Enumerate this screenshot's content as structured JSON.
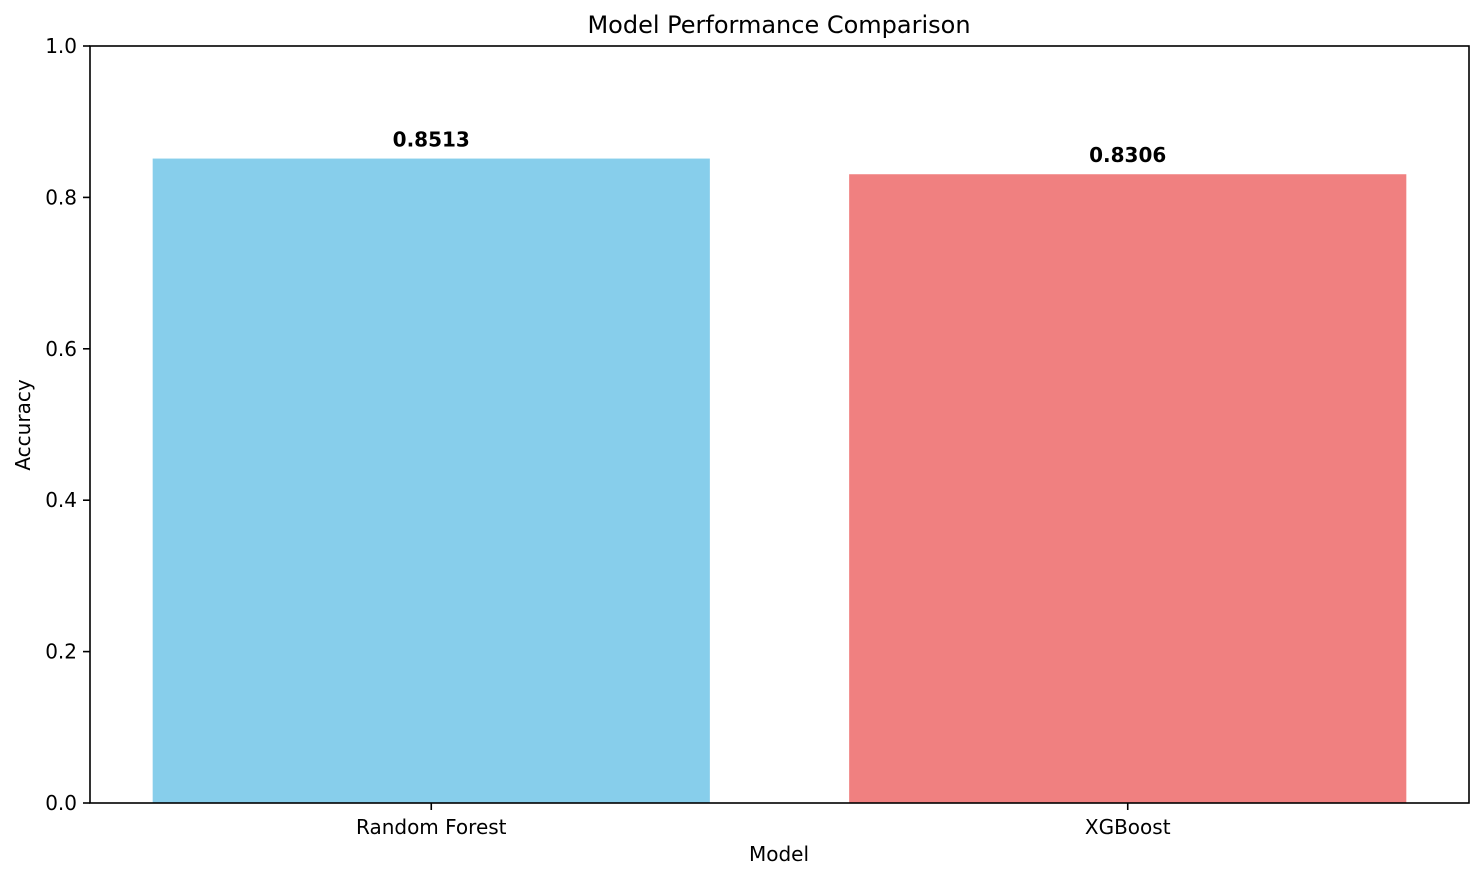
{
  "chart_data": {
    "type": "bar",
    "title": "Model Performance Comparison",
    "xlabel": "Model",
    "ylabel": "Accuracy",
    "categories": [
      "Random Forest",
      "XGBoost"
    ],
    "values": [
      0.8513,
      0.8306
    ],
    "value_labels": [
      "0.8513",
      "0.8306"
    ],
    "colors": [
      "#87ceeb",
      "#f08080"
    ],
    "ylim": [
      0,
      1.0
    ],
    "yticks": [
      0.0,
      0.2,
      0.4,
      0.6,
      0.8,
      1.0
    ],
    "ytick_labels": [
      "0.0",
      "0.2",
      "0.4",
      "0.6",
      "0.8",
      "1.0"
    ],
    "grid": false,
    "legend": "none"
  }
}
